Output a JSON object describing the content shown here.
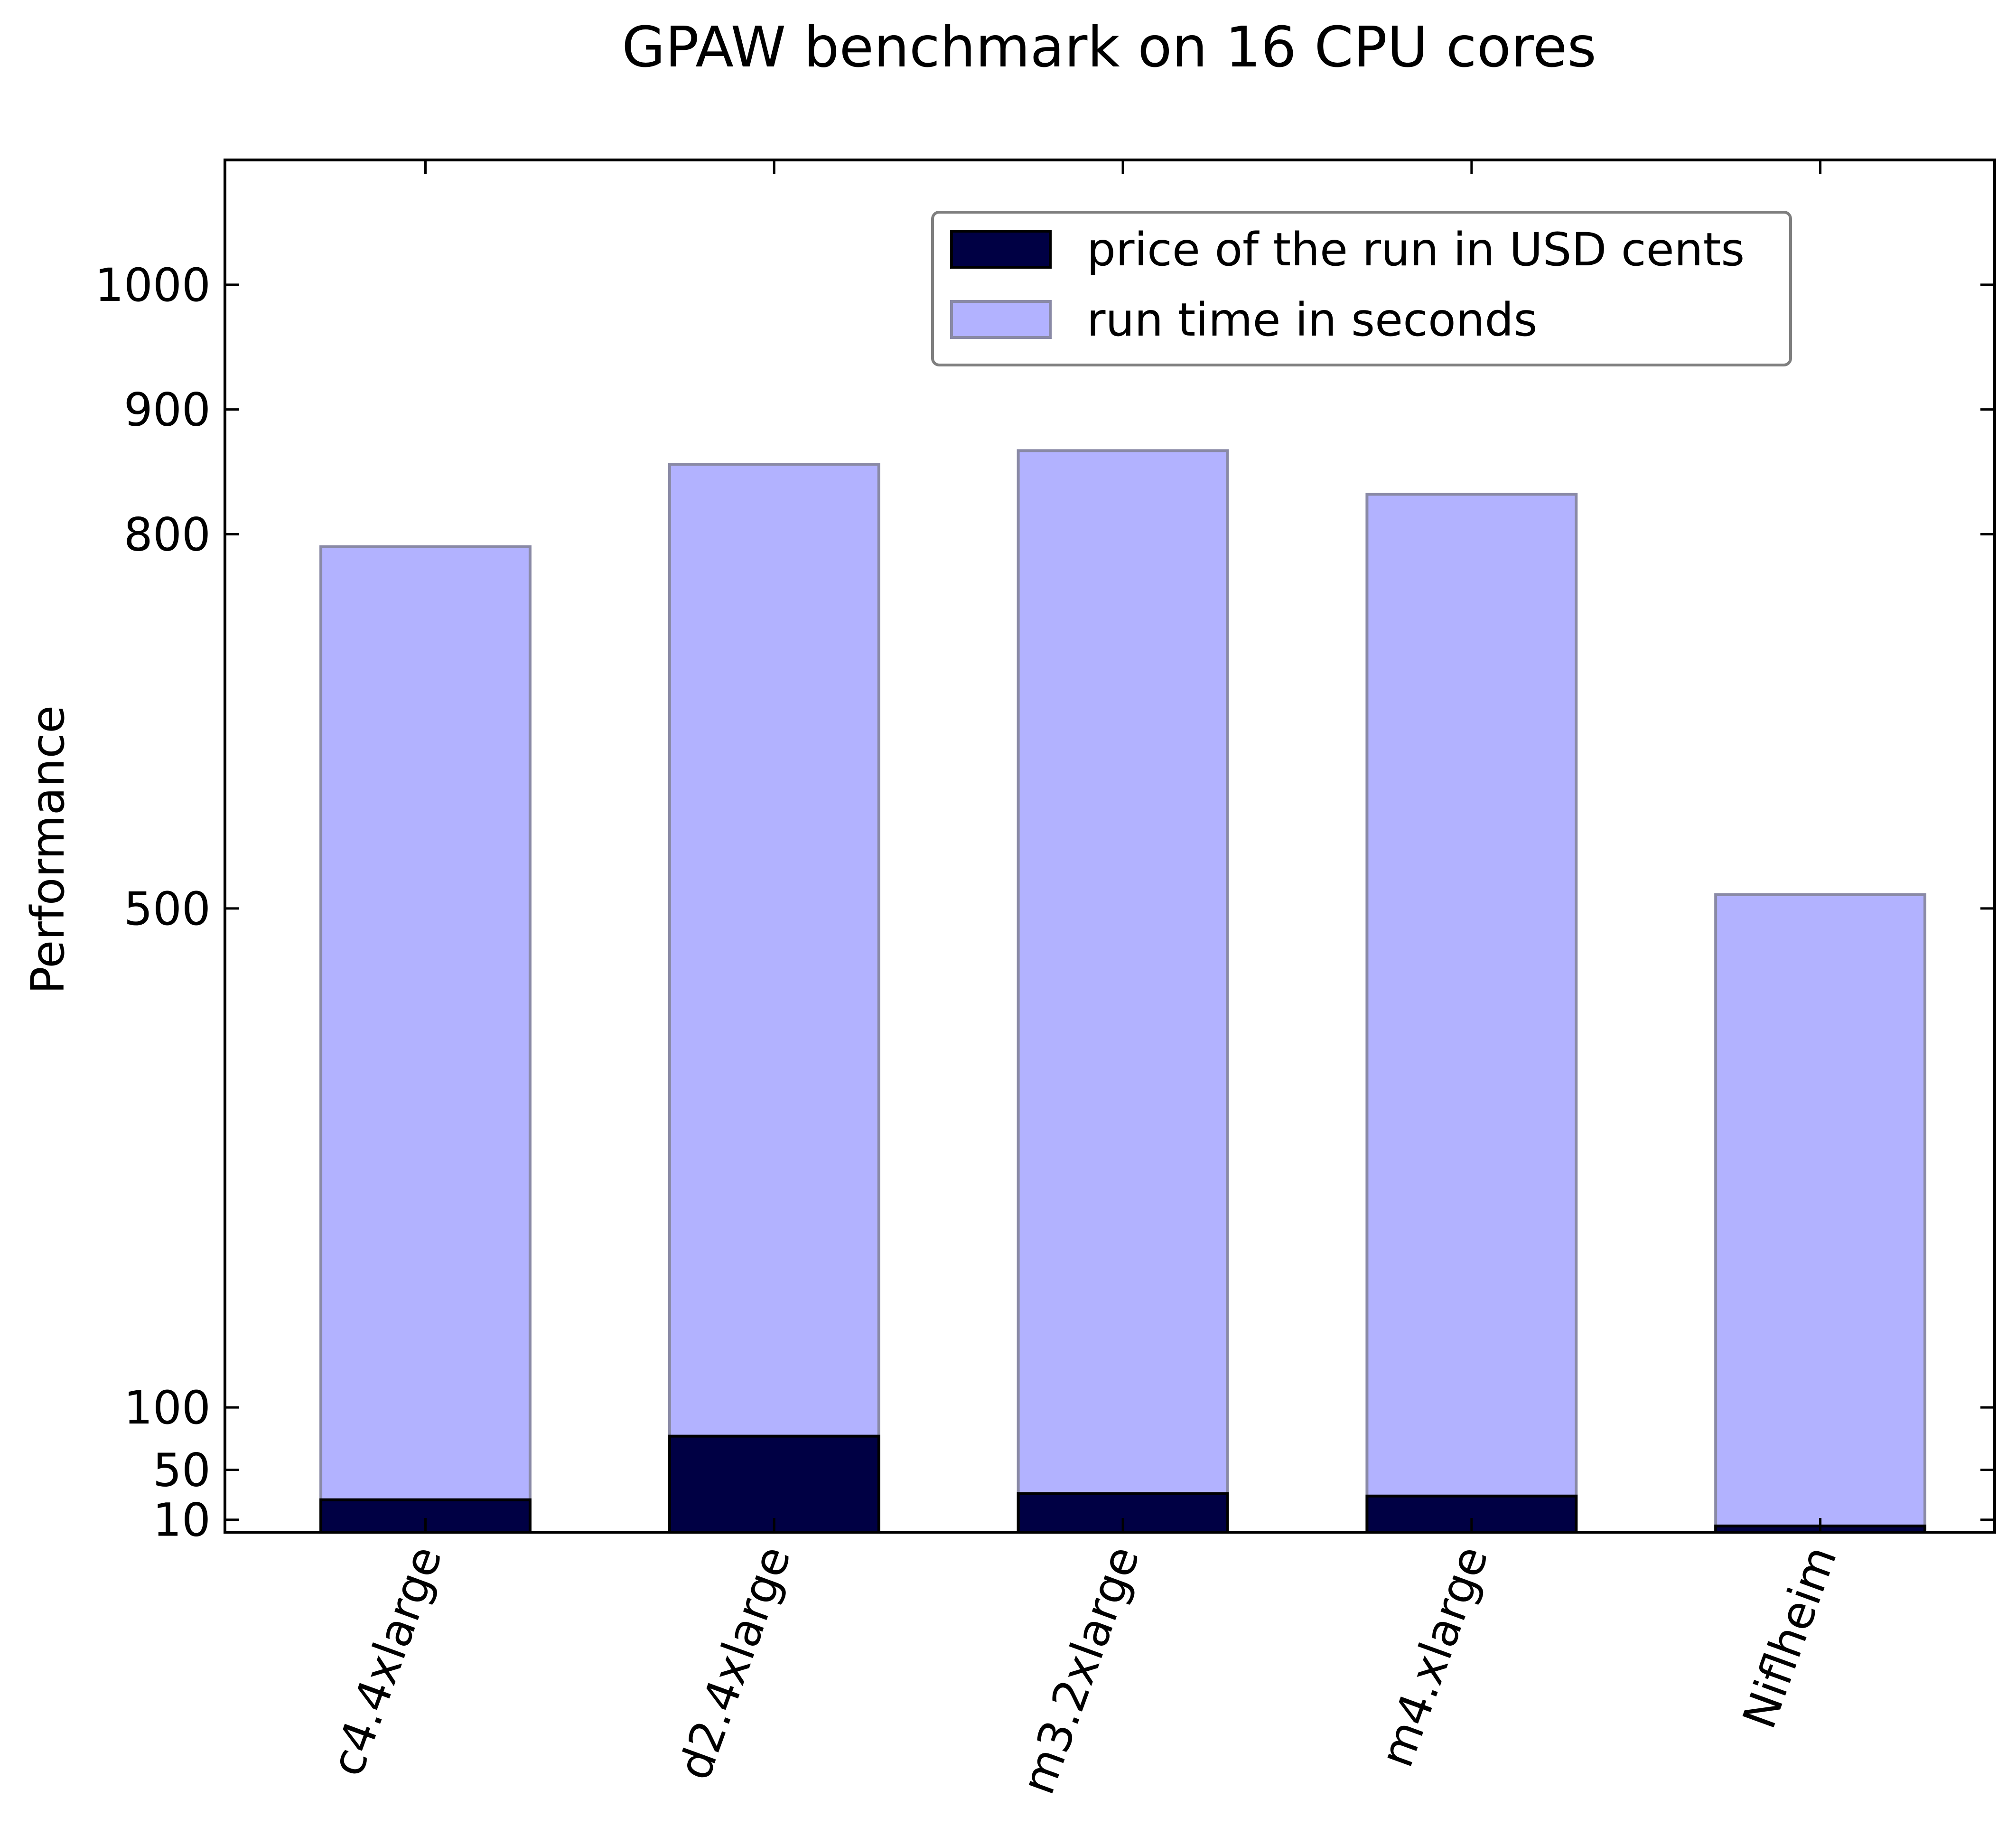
{
  "chart_data": {
    "type": "bar",
    "title": "GPAW benchmark on 16 CPU cores",
    "xlabel": "",
    "ylabel": "Performance",
    "categories": [
      "c4.4xlarge",
      "d2.4xlarge",
      "m3.2xlarge",
      "m4.xlarge",
      "Niflheim"
    ],
    "ylim": [
      0,
      1100
    ],
    "yticks": [
      10,
      50,
      100,
      500,
      800,
      900,
      1000
    ],
    "series": [
      {
        "name": "run time in seconds",
        "values": [
          790,
          856,
          867,
          832,
          511
        ],
        "color": "#b2b2ff",
        "edge_color": "#8a8aa6"
      },
      {
        "name": "price of the run in USD cents",
        "values": [
          26,
          77,
          31,
          29,
          5
        ],
        "color": "#000044",
        "edge_color": "#000000"
      }
    ],
    "legend": {
      "placement": "upper-right",
      "order": [
        "price of the run in USD cents",
        "run time in seconds"
      ]
    },
    "grid": false
  }
}
